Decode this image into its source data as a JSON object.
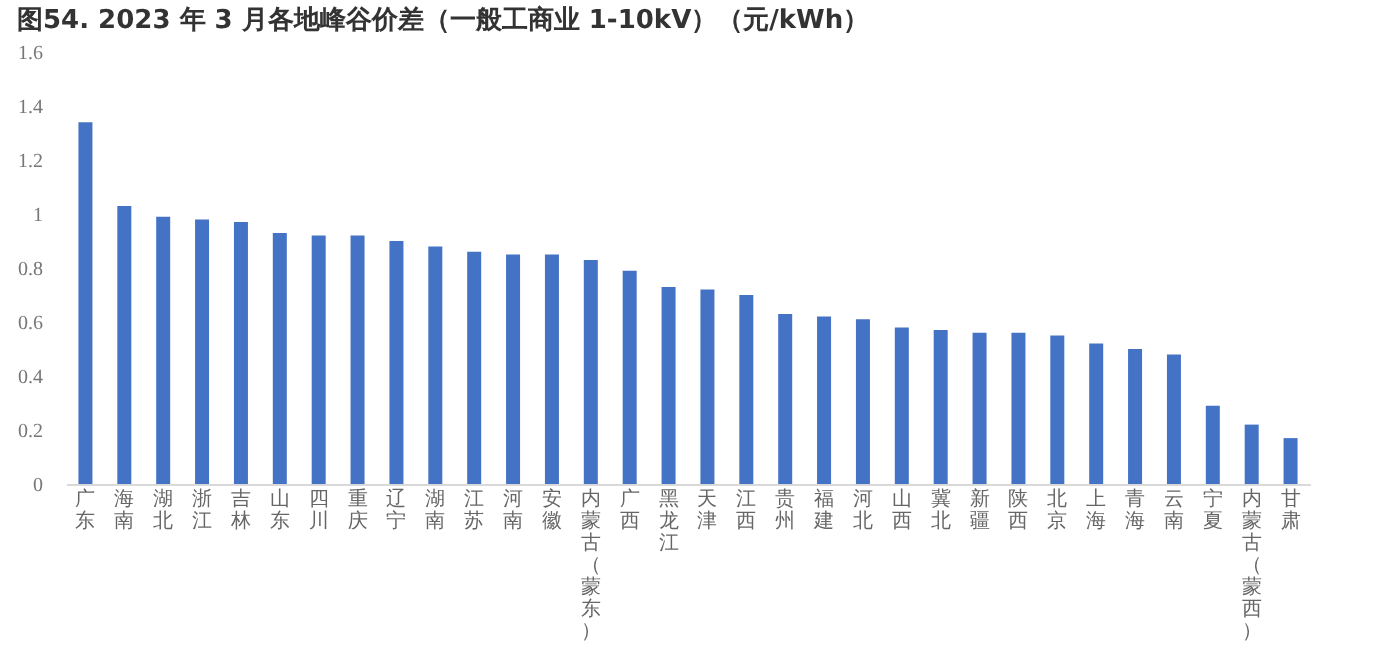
{
  "chart_data": {
    "type": "bar",
    "title": "图54. 2023 年 3 月各地峰谷价差（一般工商业 1-10kV）（元/kWh）",
    "categories": [
      "广东",
      "海南",
      "湖北",
      "浙江",
      "吉林",
      "山东",
      "四川",
      "重庆",
      "辽宁",
      "湖南",
      "江苏",
      "河南",
      "安徽",
      "内蒙古（蒙东）",
      "广西",
      "黑龙江",
      "天津",
      "江西",
      "贵州",
      "福建",
      "河北",
      "山西",
      "冀北",
      "新疆",
      "陕西",
      "北京",
      "上海",
      "青海",
      "云南",
      "宁夏",
      "内蒙古（蒙西）",
      "甘肃"
    ],
    "values": [
      1.34,
      1.03,
      0.99,
      0.98,
      0.97,
      0.93,
      0.92,
      0.92,
      0.9,
      0.88,
      0.86,
      0.85,
      0.85,
      0.83,
      0.79,
      0.73,
      0.72,
      0.7,
      0.63,
      0.62,
      0.61,
      0.58,
      0.57,
      0.56,
      0.56,
      0.55,
      0.52,
      0.5,
      0.48,
      0.29,
      0.22,
      0.17
    ],
    "color": "#4472c4",
    "ylim": [
      0,
      1.6
    ],
    "yticks": [
      0,
      0.2,
      0.4,
      0.6,
      0.8,
      1,
      1.2,
      1.4,
      1.6
    ],
    "grid": false
  }
}
